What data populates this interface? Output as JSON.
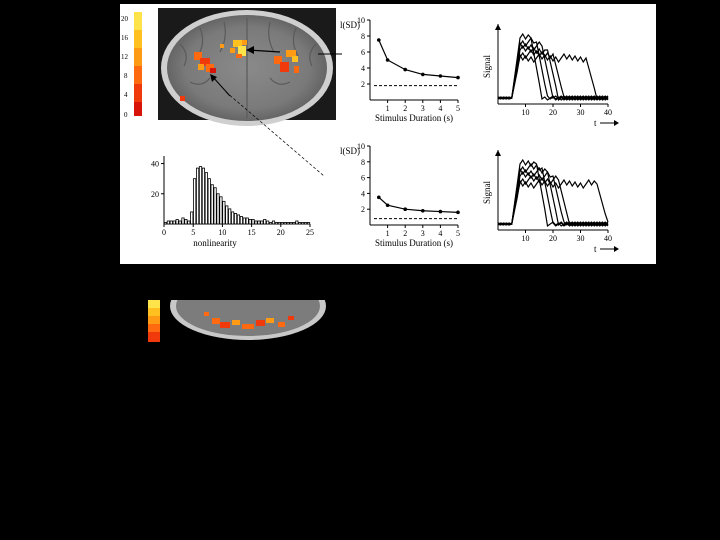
{
  "colorbar": {
    "ticks": [
      "20",
      "16",
      "12",
      "8",
      "4",
      "0"
    ],
    "colors": [
      "#ffe34a",
      "#ffc020",
      "#ff9a14",
      "#ff6a10",
      "#f03a0c",
      "#d8140a"
    ]
  },
  "chart_data": [
    {
      "type": "line",
      "ylabel": "l(SD)",
      "xlabel": "Stimulus Duration (s)",
      "x": [
        0.5,
        1,
        2,
        3,
        4,
        5
      ],
      "y": [
        7.5,
        5.0,
        3.8,
        3.2,
        3.0,
        2.8
      ],
      "baseline": 1.8,
      "xticks": [
        "1",
        "2",
        "3",
        "4",
        "5"
      ],
      "yticks": [
        "10",
        "8",
        "6",
        "4",
        "2"
      ],
      "ylim": [
        0,
        10
      ]
    },
    {
      "type": "line",
      "ylabel": "Signal",
      "xlabel": "t",
      "xticks": [
        "10",
        "20",
        "30",
        "40"
      ],
      "xlim": [
        0,
        40
      ],
      "note": "overlaid responses to different stimulus durations"
    },
    {
      "type": "bar",
      "xlabel": "nonlinearity",
      "xticks": [
        "0",
        "5",
        "10",
        "15",
        "20",
        "25"
      ],
      "yticks": [
        "40",
        "20"
      ],
      "xlim": [
        0,
        25
      ],
      "ylim": [
        0,
        45
      ],
      "values": [
        1,
        2,
        2,
        2,
        3,
        2,
        4,
        3,
        2,
        8,
        30,
        37,
        38,
        37,
        34,
        30,
        26,
        24,
        20,
        18,
        15,
        12,
        10,
        8,
        7,
        6,
        5,
        4,
        4,
        3,
        3,
        2,
        2,
        2,
        3,
        2,
        1,
        2,
        1,
        1,
        1,
        1,
        1,
        1,
        1,
        2,
        1,
        1,
        1,
        1
      ]
    },
    {
      "type": "line",
      "ylabel": "l(SD)",
      "xlabel": "Stimulus Duration (s)",
      "x": [
        0.5,
        1,
        2,
        3,
        4,
        5
      ],
      "y": [
        3.5,
        2.5,
        2.0,
        1.8,
        1.7,
        1.6
      ],
      "baseline": 0.8,
      "xticks": [
        "1",
        "2",
        "3",
        "4",
        "5"
      ],
      "yticks": [
        "10",
        "8",
        "6",
        "4",
        "2"
      ],
      "ylim": [
        0,
        10
      ]
    },
    {
      "type": "line",
      "ylabel": "Signal",
      "xlabel": "t",
      "xticks": [
        "10",
        "20",
        "30",
        "40"
      ],
      "xlim": [
        0,
        40
      ],
      "note": "overlaid responses to different stimulus durations"
    }
  ]
}
